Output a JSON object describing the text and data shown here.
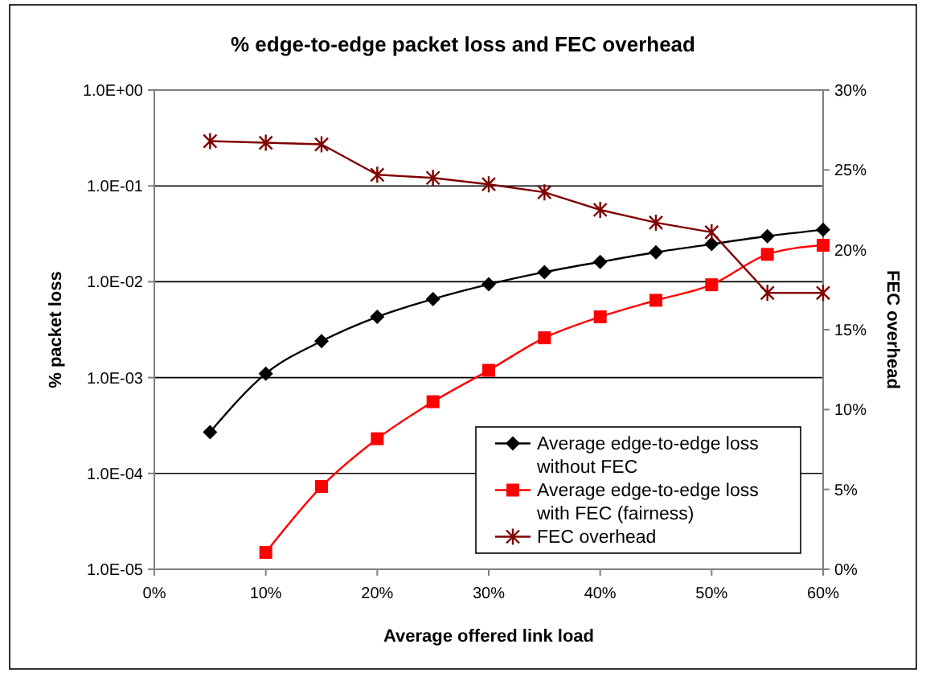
{
  "chart_data": {
    "type": "line",
    "title": "% edge-to-edge packet loss and FEC overhead",
    "xlabel": "Average offered link load",
    "ylabel": "% packet loss",
    "y2label": "FEC overhead",
    "x": [
      5,
      10,
      15,
      20,
      25,
      30,
      35,
      40,
      45,
      50,
      55,
      60
    ],
    "series": [
      {
        "name": "Average edge-to-edge loss without FEC",
        "color": "#000000",
        "marker": "diamond",
        "values": [
          0.00027,
          0.0011,
          0.0024,
          0.0043,
          0.0066,
          0.0094,
          0.0126,
          0.0161,
          0.0203,
          0.0247,
          0.0299,
          0.0349
        ]
      },
      {
        "name": "Average edge-to-edge loss with FEC (fairness)",
        "color": "#ff0000",
        "marker": "square",
        "values": [
          null,
          1.5e-05,
          7.3e-05,
          0.00023,
          0.00056,
          0.00119,
          0.0026,
          0.0043,
          0.0064,
          0.0093,
          0.0193,
          0.024
        ]
      },
      {
        "name": "FEC overhead",
        "color": "#800000",
        "marker": "cross",
        "axis": "y2",
        "values": [
          26.8,
          26.7,
          26.6,
          24.7,
          24.5,
          24.1,
          23.6,
          22.5,
          21.7,
          21.1,
          17.3,
          17.3
        ]
      }
    ],
    "log": "y",
    "xlim": [
      0,
      60
    ],
    "xticks": [
      {
        "value": 0,
        "label": "0%"
      },
      {
        "value": 10,
        "label": "10%"
      },
      {
        "value": 20,
        "label": "20%"
      },
      {
        "value": 30,
        "label": "30%"
      },
      {
        "value": 40,
        "label": "40%"
      },
      {
        "value": 50,
        "label": "50%"
      },
      {
        "value": 60,
        "label": "60%"
      }
    ],
    "ylim": [
      1e-05,
      1
    ],
    "yticks": [
      {
        "value": 1e-05,
        "label": "1.0E-05"
      },
      {
        "value": 0.0001,
        "label": "1.0E-04"
      },
      {
        "value": 0.001,
        "label": "1.0E-03"
      },
      {
        "value": 0.01,
        "label": "1.0E-02"
      },
      {
        "value": 0.1,
        "label": "1.0E-01"
      },
      {
        "value": 1,
        "label": "1.0E+00"
      }
    ],
    "y2lim": [
      0,
      30
    ],
    "y2ticks": [
      {
        "value": 0,
        "label": "0%"
      },
      {
        "value": 5,
        "label": "5%"
      },
      {
        "value": 10,
        "label": "10%"
      },
      {
        "value": 15,
        "label": "15%"
      },
      {
        "value": 20,
        "label": "20%"
      },
      {
        "value": 25,
        "label": "25%"
      },
      {
        "value": 30,
        "label": "30%"
      }
    ],
    "grid": "y",
    "legend": "bottom right",
    "line_style": "solid"
  }
}
